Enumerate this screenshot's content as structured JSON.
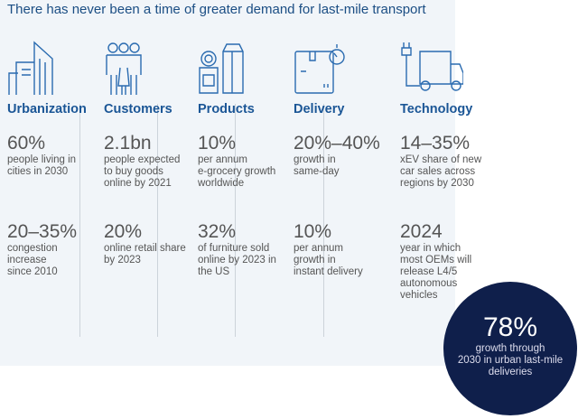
{
  "title": "There has never been a time of greater demand for last-mile transport",
  "columns": [
    {
      "heading": "Urbanization",
      "icon": "city-buildings-icon",
      "stats": [
        {
          "value": "60%",
          "desc": [
            "people living in",
            "cities in 2030"
          ]
        },
        {
          "value": "20–35%",
          "desc": [
            "congestion",
            "increase",
            "since 2010"
          ]
        }
      ]
    },
    {
      "heading": "Customers",
      "icon": "people-group-icon",
      "stats": [
        {
          "value": "2.1bn",
          "desc": [
            "people expected",
            "to buy goods",
            "online by 2021"
          ]
        },
        {
          "value": "20%",
          "desc": [
            "online retail share",
            "by 2023"
          ]
        }
      ]
    },
    {
      "heading": "Products",
      "icon": "groceries-icon",
      "stats": [
        {
          "value": "10%",
          "desc": [
            "per annum",
            "e-grocery growth",
            "worldwide"
          ]
        },
        {
          "value": "32%",
          "desc": [
            "of furniture sold",
            "online by 2023 in",
            "the US"
          ]
        }
      ]
    },
    {
      "heading": "Delivery",
      "icon": "package-stopwatch-icon",
      "stats": [
        {
          "value": "20%–40%",
          "desc": [
            "growth in",
            "same-day"
          ]
        },
        {
          "value": "10%",
          "desc": [
            "per annum",
            "growth in",
            "instant delivery"
          ]
        }
      ]
    },
    {
      "heading": "Technology",
      "icon": "electric-truck-icon",
      "stats": [
        {
          "value": "14–35%",
          "desc": [
            "xEV share of new",
            "car sales across",
            "regions by 2030"
          ]
        },
        {
          "value": "2024",
          "desc": [
            "year in which",
            "most OEMs will",
            "release L4/5",
            "autonomous",
            "vehicles"
          ]
        }
      ]
    }
  ],
  "highlight": {
    "value": "78%",
    "desc": [
      "growth through",
      "2030 in urban last-mile",
      "deliveries"
    ]
  },
  "colors": {
    "panel": "#f1f5f9",
    "heading": "#1b5696",
    "circle": "#0f1f4b"
  }
}
